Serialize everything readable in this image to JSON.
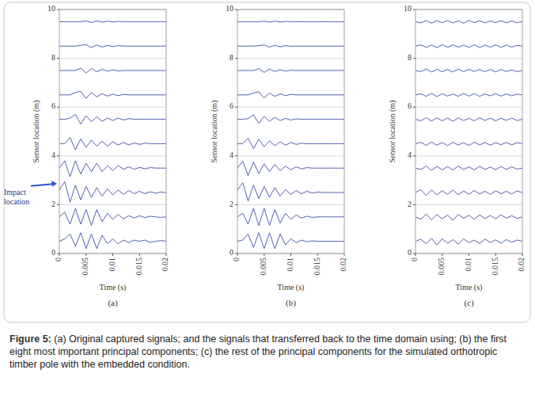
{
  "chart_data": [
    {
      "type": "line",
      "title": "(a)",
      "x_label": "Time (s)",
      "y_label": "Sensor location (m)",
      "xlim": [
        0,
        0.02
      ],
      "xticks": [
        0,
        0.005,
        0.01,
        0.015,
        0.02
      ],
      "ylim": [
        0,
        10
      ],
      "yticks": [
        0,
        2,
        4,
        6,
        8,
        10
      ],
      "grid": true,
      "color": "#3d4ea6",
      "annotations": [
        {
          "text": "Impact location",
          "y": 2.8
        }
      ],
      "x": [
        0,
        0.001,
        0.002,
        0.003,
        0.004,
        0.005,
        0.006,
        0.007,
        0.008,
        0.009,
        0.01,
        0.011,
        0.012,
        0.013,
        0.014,
        0.015,
        0.016,
        0.017,
        0.018,
        0.019,
        0.02
      ],
      "series": [
        {
          "values": [
            0.5,
            0.6,
            0.8,
            0.3,
            0.85,
            0.2,
            0.8,
            0.2,
            0.75,
            0.4,
            0.6,
            0.4,
            0.55,
            0.45,
            0.55,
            0.5,
            0.55,
            0.45,
            0.5,
            0.53,
            0.5
          ]
        },
        {
          "values": [
            1.5,
            1.7,
            1.2,
            1.85,
            1.2,
            1.8,
            1.15,
            1.8,
            1.3,
            1.65,
            1.4,
            1.6,
            1.42,
            1.55,
            1.45,
            1.55,
            1.47,
            1.53,
            1.5,
            1.48,
            1.5
          ]
        },
        {
          "values": [
            2.6,
            2.95,
            2.1,
            2.8,
            2.2,
            2.75,
            2.3,
            2.7,
            2.35,
            2.65,
            2.4,
            2.6,
            2.42,
            2.58,
            2.45,
            2.55,
            2.45,
            2.53,
            2.47,
            2.52,
            2.5
          ]
        },
        {
          "values": [
            3.5,
            3.8,
            3.15,
            3.8,
            3.25,
            3.7,
            3.35,
            3.7,
            3.35,
            3.6,
            3.4,
            3.6,
            3.45,
            3.55,
            3.45,
            3.53,
            3.47,
            3.52,
            3.5,
            3.5,
            3.5
          ]
        },
        {
          "values": [
            4.5,
            4.5,
            4.75,
            4.25,
            4.7,
            4.35,
            4.65,
            4.4,
            4.6,
            4.4,
            4.58,
            4.45,
            4.55,
            4.45,
            4.53,
            4.47,
            4.52,
            4.5,
            4.5,
            4.5,
            4.5
          ]
        },
        {
          "values": [
            5.5,
            5.5,
            5.55,
            5.7,
            5.3,
            5.65,
            5.4,
            5.6,
            5.42,
            5.55,
            5.45,
            5.55,
            5.47,
            5.53,
            5.5,
            5.5,
            5.5,
            5.5,
            5.5,
            5.5,
            5.5
          ]
        },
        {
          "values": [
            6.5,
            6.5,
            6.5,
            6.6,
            6.65,
            6.35,
            6.6,
            6.42,
            6.55,
            6.45,
            6.53,
            6.47,
            6.52,
            6.5,
            6.5,
            6.5,
            6.5,
            6.5,
            6.5,
            6.5,
            6.5
          ]
        },
        {
          "values": [
            7.5,
            7.5,
            7.5,
            7.5,
            7.6,
            7.4,
            7.58,
            7.45,
            7.55,
            7.47,
            7.53,
            7.48,
            7.5,
            7.5,
            7.5,
            7.5,
            7.5,
            7.5,
            7.5,
            7.5,
            7.5
          ]
        },
        {
          "values": [
            8.5,
            8.5,
            8.5,
            8.5,
            8.53,
            8.56,
            8.44,
            8.55,
            8.46,
            8.53,
            8.48,
            8.52,
            8.5,
            8.5,
            8.5,
            8.5,
            8.5,
            8.5,
            8.5,
            8.5,
            8.5
          ]
        },
        {
          "values": [
            9.5,
            9.5,
            9.5,
            9.5,
            9.5,
            9.53,
            9.47,
            9.53,
            9.48,
            9.52,
            9.49,
            9.51,
            9.5,
            9.5,
            9.5,
            9.5,
            9.5,
            9.5,
            9.5,
            9.5,
            9.5
          ]
        }
      ]
    },
    {
      "type": "line",
      "title": "(b)",
      "x_label": "Time (s)",
      "y_label": "Sensor location (m)",
      "xlim": [
        0,
        0.02
      ],
      "xticks": [
        0,
        0.005,
        0.01,
        0.015,
        0.02
      ],
      "ylim": [
        0,
        10
      ],
      "yticks": [
        0,
        2,
        4,
        6,
        8,
        10
      ],
      "grid": true,
      "color": "#3d4ea6",
      "x": [
        0,
        0.001,
        0.002,
        0.003,
        0.004,
        0.005,
        0.006,
        0.007,
        0.008,
        0.009,
        0.01,
        0.011,
        0.012,
        0.013,
        0.014,
        0.015,
        0.016,
        0.017,
        0.018,
        0.019,
        0.02
      ],
      "series": [
        {
          "values": [
            0.5,
            0.55,
            0.8,
            0.25,
            0.85,
            0.2,
            0.85,
            0.2,
            0.8,
            0.35,
            0.6,
            0.45,
            0.55,
            0.48,
            0.52,
            0.5,
            0.5,
            0.5,
            0.5,
            0.5,
            0.5
          ]
        },
        {
          "values": [
            1.5,
            1.65,
            1.2,
            1.85,
            1.15,
            1.85,
            1.15,
            1.8,
            1.25,
            1.65,
            1.4,
            1.58,
            1.45,
            1.53,
            1.48,
            1.5,
            1.5,
            1.5,
            1.5,
            1.5,
            1.5
          ]
        },
        {
          "values": [
            2.6,
            2.9,
            2.15,
            2.8,
            2.25,
            2.75,
            2.3,
            2.7,
            2.35,
            2.62,
            2.42,
            2.58,
            2.45,
            2.55,
            2.48,
            2.52,
            2.5,
            2.5,
            2.5,
            2.5,
            2.5
          ]
        },
        {
          "values": [
            3.5,
            3.78,
            3.2,
            3.75,
            3.28,
            3.68,
            3.35,
            3.65,
            3.4,
            3.58,
            3.43,
            3.55,
            3.47,
            3.52,
            3.5,
            3.5,
            3.5,
            3.5,
            3.5,
            3.5,
            3.5
          ]
        },
        {
          "values": [
            4.5,
            4.5,
            4.72,
            4.3,
            4.68,
            4.38,
            4.62,
            4.42,
            4.58,
            4.44,
            4.55,
            4.47,
            4.52,
            4.5,
            4.5,
            4.5,
            4.5,
            4.5,
            4.5,
            4.5,
            4.5
          ]
        },
        {
          "values": [
            5.5,
            5.5,
            5.53,
            5.68,
            5.33,
            5.62,
            5.42,
            5.58,
            5.45,
            5.54,
            5.47,
            5.52,
            5.5,
            5.5,
            5.5,
            5.5,
            5.5,
            5.5,
            5.5,
            5.5,
            5.5
          ]
        },
        {
          "values": [
            6.5,
            6.5,
            6.5,
            6.58,
            6.63,
            6.38,
            6.58,
            6.44,
            6.54,
            6.47,
            6.52,
            6.5,
            6.5,
            6.5,
            6.5,
            6.5,
            6.5,
            6.5,
            6.5,
            6.5,
            6.5
          ]
        },
        {
          "values": [
            7.5,
            7.5,
            7.5,
            7.5,
            7.58,
            7.42,
            7.56,
            7.46,
            7.53,
            7.48,
            7.51,
            7.5,
            7.5,
            7.5,
            7.5,
            7.5,
            7.5,
            7.5,
            7.5,
            7.5,
            7.5
          ]
        },
        {
          "values": [
            8.5,
            8.5,
            8.5,
            8.5,
            8.52,
            8.55,
            8.46,
            8.53,
            8.47,
            8.52,
            8.49,
            8.5,
            8.5,
            8.5,
            8.5,
            8.5,
            8.5,
            8.5,
            8.5,
            8.5,
            8.5
          ]
        },
        {
          "values": [
            9.5,
            9.5,
            9.5,
            9.5,
            9.5,
            9.52,
            9.48,
            9.52,
            9.49,
            9.51,
            9.5,
            9.5,
            9.5,
            9.5,
            9.5,
            9.5,
            9.5,
            9.5,
            9.5,
            9.5,
            9.5
          ]
        }
      ]
    },
    {
      "type": "line",
      "title": "(c)",
      "x_label": "Time (s)",
      "y_label": "Sensor location (m)",
      "xlim": [
        0,
        0.02
      ],
      "xticks": [
        0,
        0.005,
        0.01,
        0.015,
        0.02
      ],
      "ylim": [
        0,
        10
      ],
      "yticks": [
        0,
        2,
        4,
        6,
        8,
        10
      ],
      "grid": true,
      "color": "#3d4ea6",
      "x": [
        0,
        0.001,
        0.002,
        0.003,
        0.004,
        0.005,
        0.006,
        0.007,
        0.008,
        0.009,
        0.01,
        0.011,
        0.012,
        0.013,
        0.014,
        0.015,
        0.016,
        0.017,
        0.018,
        0.019,
        0.02
      ],
      "series": [
        {
          "values": [
            0.5,
            0.58,
            0.4,
            0.62,
            0.35,
            0.6,
            0.42,
            0.57,
            0.38,
            0.6,
            0.44,
            0.55,
            0.41,
            0.59,
            0.45,
            0.56,
            0.42,
            0.57,
            0.46,
            0.55,
            0.5
          ]
        },
        {
          "values": [
            1.5,
            1.4,
            1.62,
            1.38,
            1.6,
            1.42,
            1.58,
            1.36,
            1.6,
            1.44,
            1.57,
            1.4,
            1.59,
            1.43,
            1.56,
            1.42,
            1.58,
            1.45,
            1.55,
            1.44,
            1.5
          ]
        },
        {
          "values": [
            2.5,
            2.62,
            2.38,
            2.6,
            2.4,
            2.57,
            2.42,
            2.6,
            2.41,
            2.56,
            2.43,
            2.58,
            2.44,
            2.55,
            2.42,
            2.57,
            2.45,
            2.55,
            2.44,
            2.56,
            2.5
          ]
        },
        {
          "values": [
            3.5,
            3.44,
            3.58,
            3.41,
            3.57,
            3.43,
            3.56,
            3.42,
            3.58,
            3.44,
            3.55,
            3.43,
            3.57,
            3.45,
            3.54,
            3.44,
            3.56,
            3.45,
            3.55,
            3.46,
            3.5
          ]
        },
        {
          "values": [
            4.5,
            4.56,
            4.43,
            4.57,
            4.44,
            4.55,
            4.42,
            4.56,
            4.45,
            4.54,
            4.43,
            4.56,
            4.45,
            4.55,
            4.44,
            4.54,
            4.46,
            4.55,
            4.45,
            4.54,
            4.5
          ]
        },
        {
          "values": [
            5.5,
            5.44,
            5.57,
            5.43,
            5.56,
            5.44,
            5.55,
            5.42,
            5.56,
            5.45,
            5.54,
            5.44,
            5.56,
            5.45,
            5.55,
            5.44,
            5.54,
            5.46,
            5.55,
            5.45,
            5.5
          ]
        },
        {
          "values": [
            6.5,
            6.55,
            6.44,
            6.56,
            6.43,
            6.55,
            6.45,
            6.54,
            6.44,
            6.56,
            6.45,
            6.55,
            6.44,
            6.54,
            6.46,
            6.55,
            6.45,
            6.54,
            6.46,
            6.53,
            6.5
          ]
        },
        {
          "values": [
            7.5,
            7.45,
            7.56,
            7.44,
            7.55,
            7.45,
            7.54,
            7.44,
            7.56,
            7.45,
            7.55,
            7.46,
            7.54,
            7.45,
            7.55,
            7.44,
            7.54,
            7.46,
            7.53,
            7.45,
            7.5
          ]
        },
        {
          "values": [
            8.5,
            8.55,
            8.45,
            8.54,
            8.44,
            8.56,
            8.45,
            8.55,
            8.46,
            8.54,
            8.45,
            8.55,
            8.44,
            8.54,
            8.46,
            8.55,
            8.45,
            8.54,
            8.46,
            8.53,
            8.5
          ]
        },
        {
          "values": [
            9.5,
            9.45,
            9.55,
            9.44,
            9.54,
            9.46,
            9.55,
            9.45,
            9.54,
            9.44,
            9.55,
            9.46,
            9.54,
            9.45,
            9.53,
            9.46,
            9.54,
            9.45,
            9.53,
            9.46,
            9.5
          ]
        }
      ]
    }
  ],
  "caption": {
    "label": "Figure 5:",
    "text": "(a) Original captured signals; and the signals that transferred back to the time domain using; (b) the first eight most important principal components; (c) the rest of the principal components for the simulated orthotropic timber pole with the embedded condition."
  }
}
